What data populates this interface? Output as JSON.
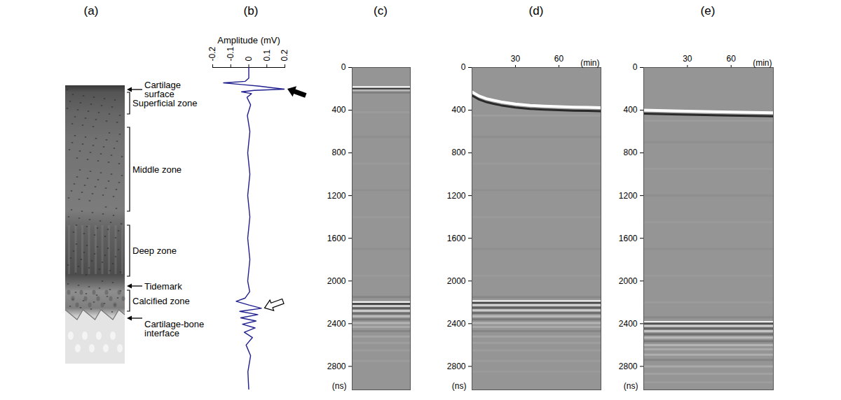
{
  "diagram": {
    "title": "(a)",
    "labels": [
      {
        "lines": [
          "Cartilage",
          "surface"
        ],
        "marker": "arrow"
      },
      {
        "lines": [
          "Superficial zone"
        ],
        "marker": "bracket"
      },
      {
        "lines": [
          "Middle zone"
        ],
        "marker": "bracket"
      },
      {
        "lines": [
          "Deep zone"
        ],
        "marker": "bracket"
      },
      {
        "lines": [
          "Tidemark"
        ],
        "marker": "arrow"
      },
      {
        "lines": [
          "Calcified zone"
        ],
        "marker": "bracket"
      },
      {
        "lines": [
          "Cartilage-bone",
          "interface"
        ],
        "marker": "arrow"
      }
    ]
  },
  "chart_data": [
    {
      "title": "(b)",
      "type": "line",
      "x_label": "Amplitude (mV)",
      "xlim": [
        -0.2,
        0.2
      ],
      "xticks": [
        -0.2,
        -0.1,
        0,
        0.1,
        0.2
      ],
      "ylim": [
        0,
        3020
      ],
      "tick_labels": "x",
      "color": "#1f1f8f",
      "x": [
        0,
        0,
        -0.02,
        -0.14,
        -0.04,
        0.06,
        0.13,
        0.2,
        0.03,
        -0.04,
        0.015,
        -0.01,
        0.01,
        -0.008,
        0.006,
        -0.006,
        0.006,
        -0.006,
        0.006,
        -0.006,
        0.006,
        -0.006,
        0.005,
        -0.02,
        -0.07,
        0.0,
        0.07,
        -0.05,
        0.05,
        -0.045,
        0.04,
        -0.035,
        0.035,
        -0.025,
        0.02,
        -0.015,
        0.01,
        -0.005,
        0
      ],
      "y": [
        0,
        100,
        130,
        144,
        160,
        175,
        190,
        203,
        215,
        228,
        245,
        280,
        350,
        450,
        600,
        800,
        1000,
        1200,
        1400,
        1600,
        1800,
        2000,
        2100,
        2160,
        2190,
        2225,
        2256,
        2285,
        2315,
        2345,
        2375,
        2405,
        2440,
        2480,
        2530,
        2600,
        2700,
        2850,
        3020
      ]
    },
    {
      "title": "(c)",
      "type": "image",
      "y_label": "(ns)",
      "ylim": [
        0,
        3020
      ],
      "yticks": [
        0,
        400,
        800,
        1200,
        1600,
        2000,
        2400,
        2800
      ],
      "echoes": {
        "y": [
          185,
          200,
          215,
          235,
          420,
          650,
          900,
          1150,
          1400,
          1700,
          1950,
          2150,
          2200,
          2215,
          2235,
          2255,
          2280,
          2305,
          2330,
          2360,
          2395,
          2430,
          2470,
          2520,
          2580,
          2650,
          2750
        ],
        "values": [
          1,
          -0.9,
          0.35,
          -0.2,
          0.06,
          -0.05,
          0.05,
          -0.05,
          0.05,
          -0.05,
          0.05,
          -0.15,
          0.9,
          -0.7,
          0.6,
          -0.5,
          0.5,
          -0.35,
          0.35,
          -0.25,
          0.3,
          0.2,
          -0.15,
          0.15,
          0.1,
          0.08,
          0.06
        ]
      }
    },
    {
      "title": "(d)",
      "type": "image",
      "y_label": "(ns)",
      "x_label": "(min)",
      "xlim": [
        0,
        89
      ],
      "xticks": [
        30,
        60
      ],
      "ylim": [
        0,
        3020
      ],
      "yticks": [
        0,
        400,
        800,
        1200,
        1600,
        2000,
        2400,
        2800
      ],
      "surface_echo": {
        "x": [
          0,
          5,
          10,
          15,
          20,
          30,
          40,
          50,
          60,
          70,
          80,
          89
        ],
        "y": [
          230,
          268,
          292,
          308,
          322,
          342,
          355,
          362,
          367,
          371,
          374,
          376
        ]
      },
      "echoes": {
        "y": [
          450,
          650,
          900,
          1150,
          1400,
          1700,
          1950,
          2150,
          2190,
          2205,
          2225,
          2250,
          2275,
          2300,
          2330,
          2360,
          2395,
          2430,
          2470,
          2520,
          2580,
          2650,
          2750,
          2850
        ],
        "values": [
          0.08,
          -0.06,
          0.05,
          -0.05,
          0.05,
          -0.05,
          0.05,
          -0.12,
          0.9,
          -0.7,
          0.6,
          -0.5,
          0.5,
          -0.35,
          0.35,
          -0.25,
          0.3,
          0.2,
          -0.15,
          0.15,
          0.1,
          0.08,
          0.06,
          0.05
        ]
      }
    },
    {
      "title": "(e)",
      "type": "image",
      "y_label": "(ns)",
      "x_label": "(min)",
      "xlim": [
        0,
        89
      ],
      "xticks": [
        30,
        60
      ],
      "ylim": [
        0,
        3020
      ],
      "yticks": [
        0,
        400,
        800,
        1200,
        1600,
        2000,
        2400,
        2800
      ],
      "surface_echo": {
        "x": [
          0,
          30,
          60,
          89
        ],
        "y": [
          400,
          410,
          418,
          424
        ]
      },
      "echoes": {
        "y": [
          500,
          700,
          950,
          1200,
          1450,
          1700,
          1950,
          2200,
          2340,
          2385,
          2400,
          2420,
          2445,
          2470,
          2500,
          2530,
          2565,
          2600,
          2640,
          2690,
          2740,
          2800,
          2870,
          2950
        ],
        "values": [
          0.08,
          -0.05,
          0.05,
          -0.05,
          0.05,
          -0.05,
          0.05,
          0.06,
          -0.12,
          0.85,
          -0.65,
          0.55,
          -0.45,
          0.45,
          -0.35,
          0.35,
          -0.25,
          0.3,
          0.2,
          0.25,
          -0.15,
          0.2,
          0.12,
          0.08
        ]
      }
    }
  ]
}
